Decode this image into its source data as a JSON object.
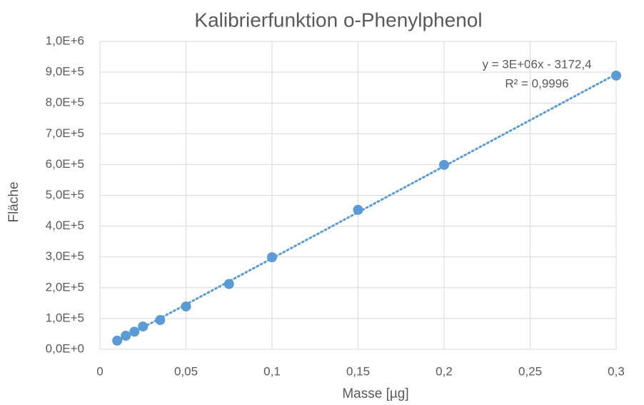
{
  "chart_data": {
    "type": "scatter",
    "title": "Kalibrierfunktion o-Phenylphenol",
    "x_label": "Masse [µg]",
    "y_label": "Fläche",
    "x": [
      0.01,
      0.015,
      0.02,
      0.025,
      0.035,
      0.05,
      0.075,
      0.1,
      0.15,
      0.2,
      0.3
    ],
    "values": [
      28000,
      44000,
      57000,
      74000,
      95000,
      139000,
      212000,
      299000,
      453000,
      599000,
      889000
    ],
    "color": "#5b9bd5",
    "trendline": "linear",
    "annotations": [
      "y = 3E+06x - 3172,4",
      "R² = 0,9996"
    ],
    "xlim": [
      0,
      0.3
    ],
    "xticks": [
      0,
      {
        "value": 0.05,
        "label": "0,05"
      },
      {
        "value": 0.1,
        "label": "0,1"
      },
      {
        "value": 0.15,
        "label": "0,15"
      },
      {
        "value": 0.2,
        "label": "0,2"
      },
      {
        "value": 0.25,
        "label": "0,25"
      },
      {
        "value": 0.3,
        "label": "0,3"
      }
    ],
    "ylim": [
      0,
      1000000
    ],
    "yticks": [
      {
        "value": 0,
        "label": "0,0E+0"
      },
      {
        "value": 100000,
        "label": "1,0E+5"
      },
      {
        "value": 200000,
        "label": "2,0E+5"
      },
      {
        "value": 300000,
        "label": "3,0E+5"
      },
      {
        "value": 400000,
        "label": "4,0E+5"
      },
      {
        "value": 500000,
        "label": "5,0E+5"
      },
      {
        "value": 600000,
        "label": "6,0E+5"
      },
      {
        "value": 700000,
        "label": "7,0E+5"
      },
      {
        "value": 800000,
        "label": "8,0E+5"
      },
      {
        "value": 900000,
        "label": "9,0E+5"
      },
      {
        "value": 1000000,
        "label": "1,0E+6"
      }
    ],
    "grid": true
  }
}
